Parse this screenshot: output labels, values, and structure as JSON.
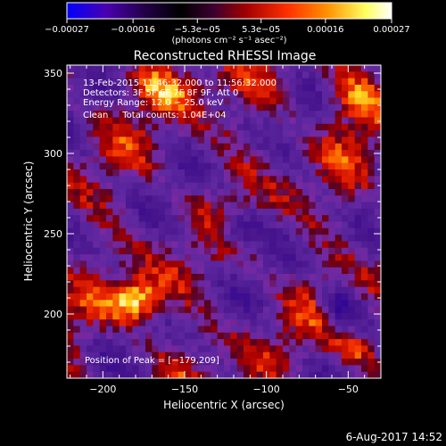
{
  "chart_data": {
    "type": "heatmap",
    "title": "Reconstructed RHESSI Image",
    "xlabel": "Heliocentric X (arcsec)",
    "ylabel": "Heliocentric Y (arcsec)",
    "xlim": [
      -222,
      -30
    ],
    "ylim": [
      160,
      355
    ],
    "x_ticks": [
      -200,
      -150,
      -100,
      -50
    ],
    "x_tick_labels": [
      "−200",
      "−150",
      "−100",
      "−50"
    ],
    "y_ticks": [
      200,
      250,
      300,
      350
    ],
    "y_tick_labels": [
      "200",
      "250",
      "300",
      "350"
    ],
    "colorbar": {
      "range": [
        -0.00027,
        0.00027
      ],
      "ticks": [
        -0.00027,
        -0.00016,
        -5.3e-05,
        5.3e-05,
        0.00016,
        0.00027
      ],
      "tick_labels": [
        "−0.00027",
        "−0.00016",
        "−5.3e−05",
        "5.3e−05",
        "0.00016",
        "0.00027"
      ],
      "unit_label": "(photons cm⁻² s⁻¹ asec⁻²)",
      "colors": [
        "#0000ff",
        "#5000a0",
        "#000000",
        "#5a2090",
        "#b00000",
        "#ff4000",
        "#ffa000",
        "#ffff80",
        "#ffffff"
      ]
    },
    "annotations": [
      "13-Feb-2015 11:46:32.000 to 11:56:32.000",
      "Detectors: 3F 5F 6F 7F 8F 9F, Att 0",
      "Energy Range: 12.0 − 25.0 keV",
      "Clean     Total counts: 1.04E+04"
    ],
    "peak_label": "Position of Peak = [−179,209]",
    "peak": [
      -179,
      209
    ],
    "background_color": "#5a2a96"
  },
  "footer_date": "6-Aug-2017 14:52"
}
